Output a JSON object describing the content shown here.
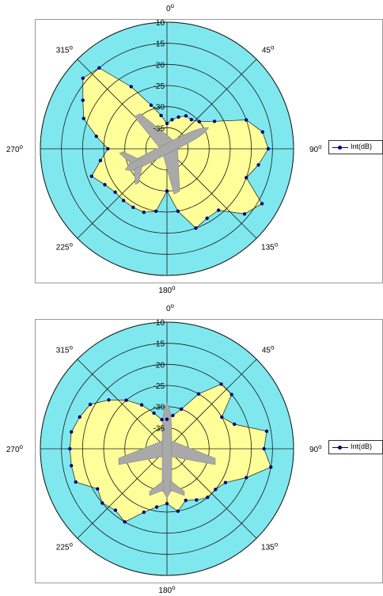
{
  "chart_data": [
    {
      "type": "polar",
      "title": "",
      "series": [
        {
          "name": "Int(dB)",
          "color": "#000080",
          "fill": "#ffff99",
          "angles": [
            0,
            10,
            20,
            30,
            40,
            50,
            60,
            70,
            80,
            90,
            100,
            110,
            120,
            130,
            140,
            150,
            160,
            170,
            180,
            190,
            200,
            210,
            220,
            230,
            240,
            250,
            260,
            270,
            280,
            290,
            300,
            310,
            320,
            330,
            340,
            350
          ],
          "values": [
            -34,
            -33,
            -32,
            -31,
            -31,
            -30,
            -27,
            -20,
            -17,
            -16,
            -18,
            -20,
            -14,
            -16,
            -21,
            -21,
            -20,
            -25,
            -30,
            -25,
            -24,
            -24,
            -24,
            -24,
            -23,
            -21,
            -24,
            -26,
            -23,
            -19,
            -17,
            -14,
            -15,
            -23,
            -29,
            -32
          ]
        }
      ],
      "radial_axis": {
        "min": -40,
        "max": -10,
        "ticks": [
          -10,
          -15,
          -20,
          -25,
          -30,
          -35
        ]
      },
      "angle_labels": [
        "0",
        "45",
        "90",
        "135",
        "180",
        "225",
        "270",
        "315"
      ],
      "angle_positions": [
        0,
        45,
        90,
        135,
        180,
        225,
        270,
        315
      ],
      "background_color": "#7fe8ee",
      "legend_position": "right"
    },
    {
      "type": "polar",
      "title": "",
      "series": [
        {
          "name": "Int(dB)",
          "color": "#000080",
          "fill": "#ffff99",
          "angles": [
            0,
            10,
            20,
            30,
            40,
            50,
            60,
            70,
            80,
            90,
            100,
            110,
            120,
            130,
            140,
            150,
            160,
            170,
            180,
            190,
            200,
            210,
            220,
            230,
            240,
            250,
            260,
            270,
            280,
            290,
            300,
            310,
            320,
            330,
            340,
            350
          ],
          "values": [
            -33,
            -32,
            -30,
            -25,
            -20,
            -20,
            -25,
            -23,
            -16,
            -17,
            -15,
            -20,
            -24,
            -25,
            -25,
            -26,
            -27,
            -25,
            -27,
            -26,
            -24,
            -20,
            -21,
            -20,
            -21,
            -17,
            -17,
            -17,
            -17,
            -18,
            -19,
            -22,
            -25,
            -28,
            -31,
            -33
          ]
        }
      ],
      "radial_axis": {
        "min": -40,
        "max": -10,
        "ticks": [
          -10,
          -15,
          -20,
          -25,
          -30,
          -35
        ]
      },
      "angle_labels": [
        "0",
        "45",
        "90",
        "135",
        "180",
        "225",
        "270",
        "315"
      ],
      "angle_positions": [
        0,
        45,
        90,
        135,
        180,
        225,
        270,
        315
      ],
      "background_color": "#7fe8ee",
      "legend_position": "right"
    }
  ]
}
